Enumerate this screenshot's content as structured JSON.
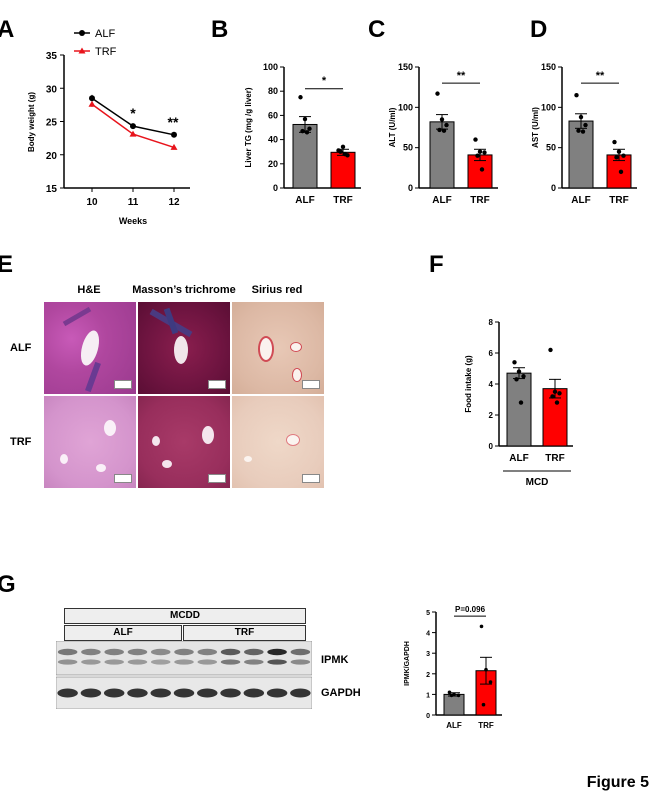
{
  "panels": {
    "A": "A",
    "B": "B",
    "C": "C",
    "D": "D",
    "E": "E",
    "F": "F",
    "G": "G"
  },
  "figure_label": "Figure 5",
  "colors": {
    "alf": "#808080",
    "trf": "#ff0000",
    "alf_line": "#000000",
    "trf_line": "#e8141c"
  },
  "panel_A": {
    "chart_data": {
      "type": "line",
      "x": [
        10,
        11,
        12
      ],
      "xlabel": "Weeks",
      "ylabel": "Body weight (g)",
      "yticks": [
        15,
        20,
        25,
        30,
        35
      ],
      "ylim": [
        15,
        35
      ],
      "legend_position": "top-left",
      "series": [
        {
          "name": "ALF",
          "values": [
            28.5,
            24.3,
            23.0
          ],
          "sem": [
            0.5,
            0.3,
            0.3
          ]
        },
        {
          "name": "TRF",
          "values": [
            27.6,
            23.1,
            21.1
          ],
          "sem": [
            0.4,
            0.3,
            0.3
          ]
        }
      ],
      "annotations": [
        {
          "x": 11,
          "text": "*"
        },
        {
          "x": 12,
          "text": "**"
        }
      ]
    }
  },
  "panel_B": {
    "chart_data": {
      "type": "bar",
      "categories": [
        "ALF",
        "TRF"
      ],
      "ylabel": "Liver TG (mg /g liver)",
      "ylim": [
        0,
        100
      ],
      "yticks": [
        0,
        20,
        40,
        60,
        80,
        100
      ],
      "values": [
        52.5,
        29.5
      ],
      "sem": [
        6.5,
        2.5
      ],
      "points": [
        [
          75,
          57,
          49,
          47,
          46
        ],
        [
          31,
          34,
          27,
          30,
          28
        ]
      ],
      "significance": "*"
    }
  },
  "panel_C": {
    "chart_data": {
      "type": "bar",
      "categories": [
        "ALF",
        "TRF"
      ],
      "ylabel": "ALT (U/ml)",
      "ylim": [
        0,
        150
      ],
      "yticks": [
        0,
        50,
        100,
        150
      ],
      "values": [
        82,
        41
      ],
      "sem": [
        9,
        7
      ],
      "points": [
        [
          117,
          85,
          78,
          72,
          71
        ],
        [
          60,
          45,
          44,
          40,
          23
        ]
      ],
      "significance": "**"
    }
  },
  "panel_D": {
    "chart_data": {
      "type": "bar",
      "categories": [
        "ALF",
        "TRF"
      ],
      "ylabel": "AST (U/ml)",
      "ylim": [
        0,
        150
      ],
      "yticks": [
        0,
        50,
        100,
        150
      ],
      "values": [
        83,
        41
      ],
      "sem": [
        9,
        7
      ],
      "points": [
        [
          115,
          88,
          78,
          71,
          70
        ],
        [
          57,
          45,
          40,
          38,
          20
        ]
      ],
      "significance": "**"
    }
  },
  "panel_E": {
    "columns": [
      "H&E",
      "Masson’s trichrome",
      "Sirius red"
    ],
    "rows": [
      "ALF",
      "TRF"
    ]
  },
  "panel_F": {
    "chart_data": {
      "type": "bar",
      "categories": [
        "ALF",
        "TRF"
      ],
      "ylabel": "Food intake (g)",
      "ylim": [
        0,
        8
      ],
      "yticks": [
        0,
        2,
        4,
        6,
        8
      ],
      "values": [
        4.7,
        3.7
      ],
      "sem": [
        0.35,
        0.6
      ],
      "points": [
        [
          5.4,
          4.8,
          4.5,
          4.3,
          2.8
        ],
        [
          6.2,
          3.5,
          3.4,
          3.2,
          2.8
        ]
      ],
      "group_label": "MCD"
    }
  },
  "panel_G": {
    "header": "MCDD",
    "groups": [
      "ALF",
      "TRF"
    ],
    "bands": [
      "IPMK",
      "GAPDH"
    ],
    "chart_data": {
      "type": "bar",
      "categories": [
        "ALF",
        "TRF"
      ],
      "ylabel": "IPMK/GAPDH",
      "ylim": [
        0,
        5
      ],
      "yticks": [
        0,
        1,
        2,
        3,
        4,
        5
      ],
      "values": [
        1.0,
        2.15
      ],
      "sem": [
        0.08,
        0.65
      ],
      "points": [
        [
          1.1,
          1.0,
          0.95,
          0.95
        ],
        [
          4.3,
          2.2,
          1.6,
          0.5
        ]
      ],
      "pvalue": "P=0.096"
    }
  }
}
